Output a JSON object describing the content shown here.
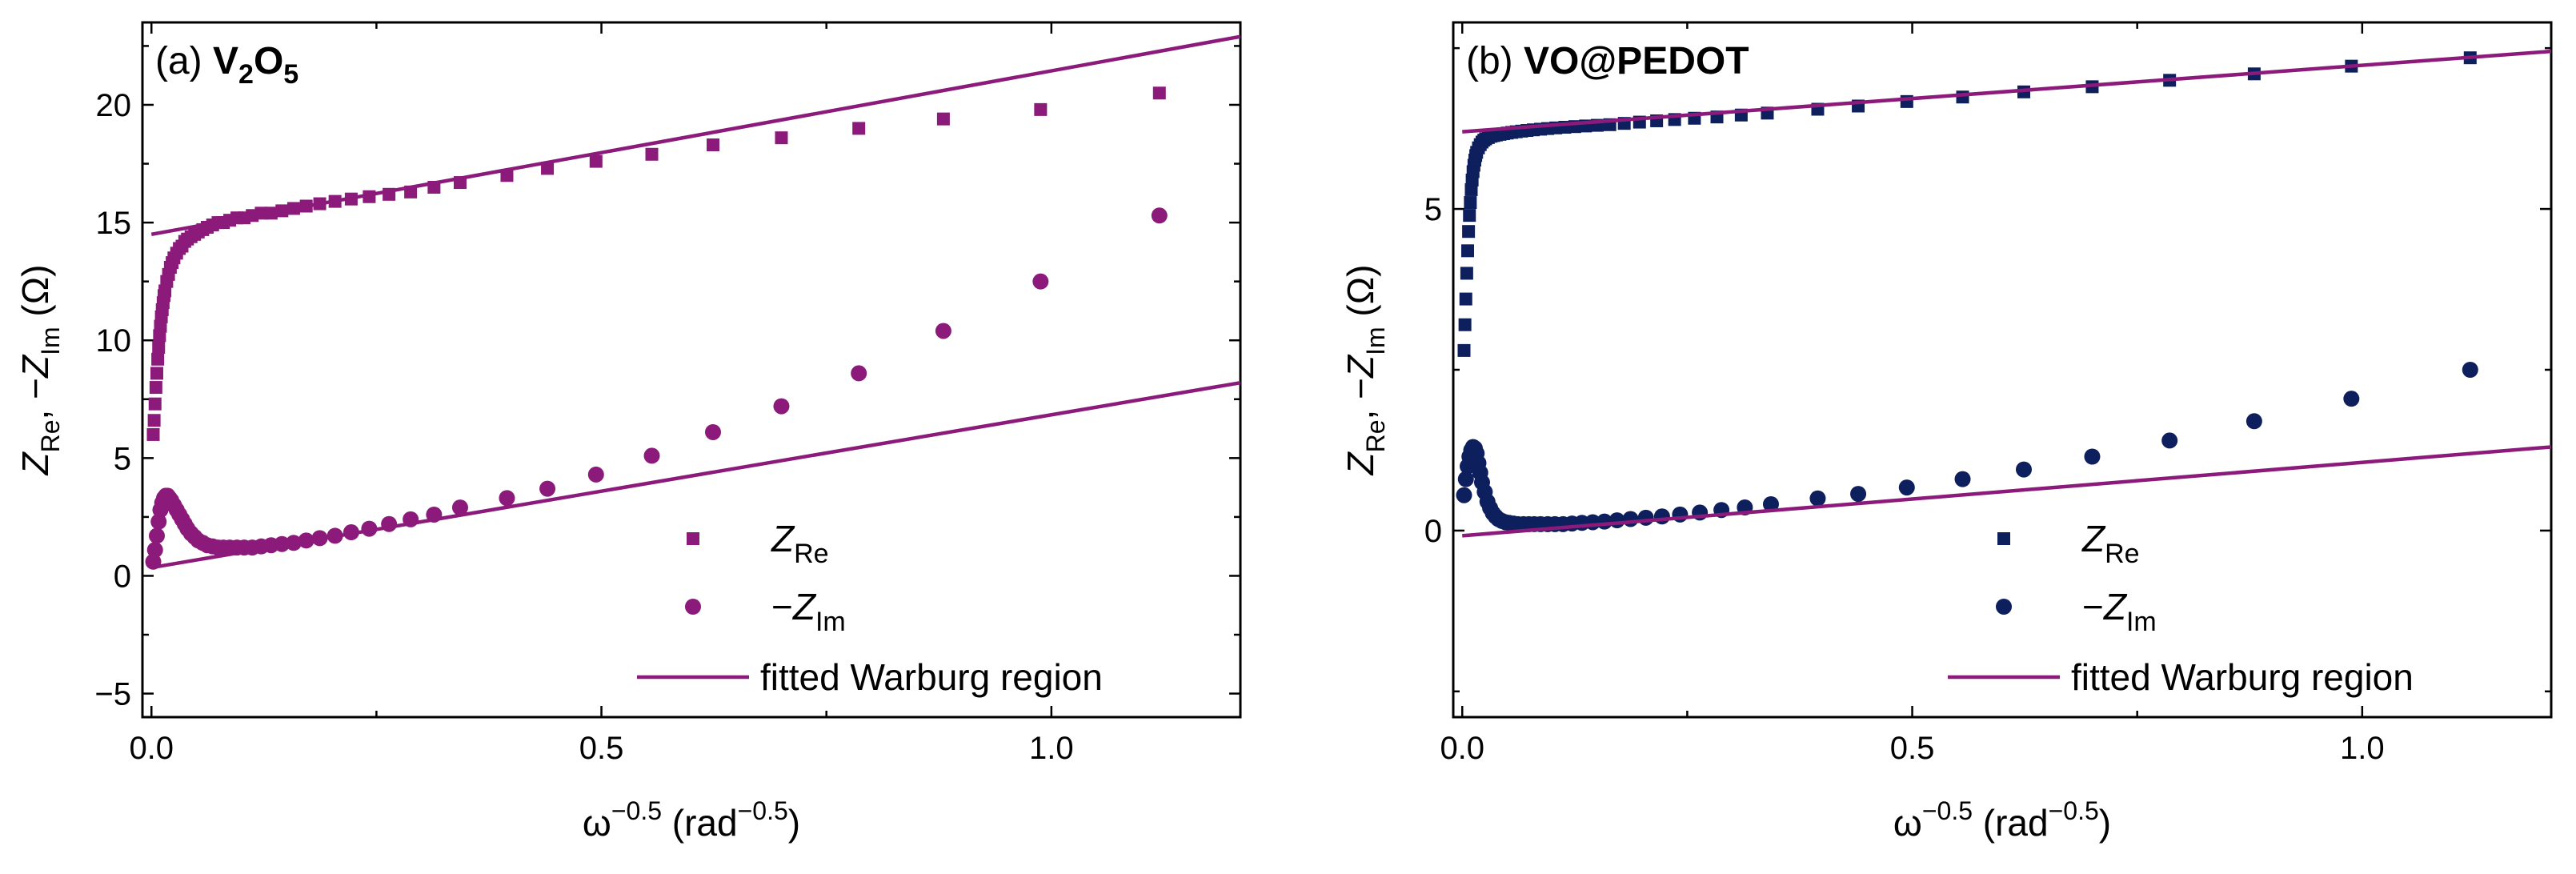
{
  "chart_data": [
    {
      "type": "scatter",
      "panel_label": "(a)",
      "title": "V2O5",
      "title_main": "V",
      "title_sub1": "2",
      "title_mid": "O",
      "title_sub2": "5",
      "xlabel": "ω−0.5 (rad−0.5)",
      "xlabel_base": "ω",
      "xlabel_exp": "−0.5",
      "xlabel_unit": " (rad",
      "xlabel_unit_exp": "−0.5",
      "xlabel_close": ")",
      "ylabel": "ZRe, −ZIm (Ω)",
      "ylabel_z1": "Z",
      "ylabel_sub1": "Re",
      "ylabel_sep": ", −",
      "ylabel_z2": "Z",
      "ylabel_sub2": "Im",
      "ylabel_unit": " (Ω)",
      "xlim": [
        -0.01,
        1.21
      ],
      "ylim": [
        -6,
        23.5
      ],
      "xticks": [
        0.0,
        0.5,
        1.0
      ],
      "xtick_labels": [
        "0.0",
        "0.5",
        "1.0"
      ],
      "yticks": [
        -5,
        0,
        5,
        10,
        15,
        20
      ],
      "ytick_labels": [
        "−5",
        "0",
        "5",
        "10",
        "15",
        "20"
      ],
      "marker_color": "#8b1a7a",
      "line_color": "#8b1a7a",
      "legend": {
        "position": "bottom-right",
        "entries": [
          {
            "marker": "square",
            "label_z": "Z",
            "label_sub": "Re",
            "label_prefix": ""
          },
          {
            "marker": "circle",
            "label_z": "Z",
            "label_sub": "Im",
            "label_prefix": "−"
          },
          {
            "marker": "line",
            "label": "fitted Warburg region"
          }
        ]
      },
      "series": [
        {
          "name": "ZRe",
          "marker": "square",
          "x": [
            0.002,
            0.003,
            0.004,
            0.005,
            0.006,
            0.007,
            0.008,
            0.009,
            0.01,
            0.011,
            0.012,
            0.013,
            0.014,
            0.015,
            0.017,
            0.019,
            0.021,
            0.023,
            0.025,
            0.028,
            0.031,
            0.034,
            0.037,
            0.04,
            0.044,
            0.048,
            0.052,
            0.057,
            0.062,
            0.068,
            0.074,
            0.08,
            0.087,
            0.095,
            0.103,
            0.112,
            0.122,
            0.133,
            0.145,
            0.158,
            0.172,
            0.187,
            0.204,
            0.222,
            0.242,
            0.264,
            0.288,
            0.314,
            0.343,
            0.395,
            0.44,
            0.494,
            0.556,
            0.624,
            0.7,
            0.786,
            0.88,
            0.988,
            1.12
          ],
          "y": [
            6.0,
            6.6,
            7.3,
            8.0,
            8.6,
            9.2,
            9.7,
            10.2,
            10.6,
            11.0,
            11.3,
            11.6,
            11.9,
            12.1,
            12.5,
            12.8,
            13.1,
            13.3,
            13.5,
            13.7,
            13.9,
            14.0,
            14.2,
            14.3,
            14.4,
            14.5,
            14.6,
            14.7,
            14.8,
            14.9,
            15.0,
            15.0,
            15.1,
            15.2,
            15.2,
            15.3,
            15.4,
            15.4,
            15.5,
            15.6,
            15.7,
            15.8,
            15.9,
            16.0,
            16.1,
            16.2,
            16.3,
            16.5,
            16.7,
            17.0,
            17.3,
            17.6,
            17.9,
            18.3,
            18.6,
            19.0,
            19.4,
            19.8,
            20.5
          ]
        },
        {
          "name": "−ZIm",
          "marker": "circle",
          "x": [
            0.002,
            0.004,
            0.006,
            0.008,
            0.01,
            0.012,
            0.014,
            0.016,
            0.018,
            0.02,
            0.022,
            0.025,
            0.028,
            0.031,
            0.034,
            0.037,
            0.04,
            0.044,
            0.048,
            0.052,
            0.057,
            0.062,
            0.068,
            0.074,
            0.08,
            0.087,
            0.095,
            0.103,
            0.112,
            0.122,
            0.133,
            0.145,
            0.158,
            0.172,
            0.187,
            0.204,
            0.222,
            0.242,
            0.264,
            0.288,
            0.314,
            0.343,
            0.395,
            0.44,
            0.494,
            0.556,
            0.624,
            0.7,
            0.786,
            0.88,
            0.988,
            1.12
          ],
          "y": [
            0.6,
            1.1,
            1.7,
            2.3,
            2.8,
            3.1,
            3.3,
            3.4,
            3.4,
            3.3,
            3.2,
            3.0,
            2.8,
            2.6,
            2.4,
            2.2,
            2.0,
            1.8,
            1.65,
            1.5,
            1.4,
            1.3,
            1.25,
            1.2,
            1.2,
            1.2,
            1.2,
            1.2,
            1.2,
            1.25,
            1.3,
            1.35,
            1.4,
            1.5,
            1.6,
            1.7,
            1.85,
            2.0,
            2.2,
            2.4,
            2.6,
            2.9,
            3.3,
            3.7,
            4.3,
            5.1,
            6.1,
            7.2,
            8.6,
            10.4,
            12.5,
            15.3
          ]
        },
        {
          "name": "fitted Warburg region (ZRe)",
          "marker": "line",
          "x": [
            0.0,
            1.21
          ],
          "y": [
            14.5,
            22.9
          ]
        },
        {
          "name": "fitted Warburg region (−ZIm)",
          "marker": "line",
          "x": [
            0.0,
            1.21
          ],
          "y": [
            0.35,
            8.2
          ]
        }
      ]
    },
    {
      "type": "scatter",
      "panel_label": "(b)",
      "title": "VO@PEDOT",
      "xlabel": "ω−0.5 (rad−0.5)",
      "xlabel_base": "ω",
      "xlabel_exp": "−0.5",
      "xlabel_unit": " (rad",
      "xlabel_unit_exp": "−0.5",
      "xlabel_close": ")",
      "ylabel": "ZRe, −ZIm (Ω)",
      "ylabel_z1": "Z",
      "ylabel_sub1": "Re",
      "ylabel_sep": ", −",
      "ylabel_z2": "Z",
      "ylabel_sub2": "Im",
      "ylabel_unit": " (Ω)",
      "xlim": [
        -0.01,
        1.21
      ],
      "ylim": [
        -2.9,
        7.9
      ],
      "xticks": [
        0.0,
        0.5,
        1.0
      ],
      "xtick_labels": [
        "0.0",
        "0.5",
        "1.0"
      ],
      "yticks": [
        0,
        5
      ],
      "ytick_labels": [
        "0",
        "5"
      ],
      "marker_color": "#0d1f5c",
      "line_color": "#8b1a7a",
      "legend": {
        "position": "bottom-right",
        "entries": [
          {
            "marker": "square",
            "label_z": "Z",
            "label_sub": "Re",
            "label_prefix": ""
          },
          {
            "marker": "circle",
            "label_z": "Z",
            "label_sub": "Im",
            "label_prefix": "−"
          },
          {
            "marker": "line",
            "label": "fitted Warburg region"
          }
        ]
      },
      "series": [
        {
          "name": "ZRe",
          "marker": "square",
          "x": [
            0.002,
            0.003,
            0.004,
            0.005,
            0.006,
            0.007,
            0.008,
            0.009,
            0.01,
            0.011,
            0.012,
            0.013,
            0.014,
            0.015,
            0.016,
            0.018,
            0.02,
            0.022,
            0.024,
            0.026,
            0.029,
            0.032,
            0.035,
            0.038,
            0.042,
            0.046,
            0.05,
            0.055,
            0.06,
            0.066,
            0.072,
            0.079,
            0.087,
            0.095,
            0.104,
            0.114,
            0.125,
            0.137,
            0.15,
            0.164,
            0.18,
            0.197,
            0.216,
            0.236,
            0.258,
            0.283,
            0.31,
            0.339,
            0.395,
            0.44,
            0.494,
            0.556,
            0.624,
            0.7,
            0.786,
            0.88,
            0.988,
            1.12
          ],
          "y": [
            2.8,
            3.2,
            3.6,
            4.0,
            4.35,
            4.65,
            4.9,
            5.1,
            5.3,
            5.45,
            5.58,
            5.68,
            5.76,
            5.83,
            5.88,
            5.95,
            6.0,
            6.04,
            6.07,
            6.09,
            6.11,
            6.13,
            6.14,
            6.15,
            6.16,
            6.17,
            6.18,
            6.19,
            6.2,
            6.21,
            6.22,
            6.23,
            6.24,
            6.25,
            6.26,
            6.27,
            6.28,
            6.29,
            6.3,
            6.31,
            6.33,
            6.35,
            6.37,
            6.39,
            6.41,
            6.43,
            6.46,
            6.49,
            6.55,
            6.6,
            6.67,
            6.74,
            6.82,
            6.9,
            7.0,
            7.1,
            7.22,
            7.35
          ]
        },
        {
          "name": "−ZIm",
          "marker": "circle",
          "x": [
            0.002,
            0.004,
            0.006,
            0.008,
            0.01,
            0.012,
            0.014,
            0.016,
            0.018,
            0.02,
            0.022,
            0.025,
            0.028,
            0.031,
            0.034,
            0.037,
            0.04,
            0.044,
            0.048,
            0.052,
            0.057,
            0.062,
            0.068,
            0.074,
            0.08,
            0.087,
            0.095,
            0.103,
            0.112,
            0.122,
            0.133,
            0.145,
            0.158,
            0.172,
            0.187,
            0.204,
            0.222,
            0.242,
            0.264,
            0.288,
            0.314,
            0.343,
            0.395,
            0.44,
            0.494,
            0.556,
            0.624,
            0.7,
            0.786,
            0.88,
            0.988,
            1.12
          ],
          "y": [
            0.55,
            0.8,
            1.0,
            1.15,
            1.25,
            1.3,
            1.28,
            1.2,
            1.05,
            0.9,
            0.75,
            0.6,
            0.45,
            0.35,
            0.27,
            0.22,
            0.18,
            0.15,
            0.13,
            0.12,
            0.11,
            0.1,
            0.1,
            0.1,
            0.1,
            0.1,
            0.1,
            0.1,
            0.1,
            0.11,
            0.12,
            0.13,
            0.14,
            0.16,
            0.18,
            0.2,
            0.22,
            0.25,
            0.28,
            0.32,
            0.36,
            0.41,
            0.5,
            0.57,
            0.67,
            0.8,
            0.95,
            1.15,
            1.4,
            1.7,
            2.05,
            2.5
          ]
        },
        {
          "name": "fitted Warburg region (ZRe)",
          "marker": "line",
          "x": [
            0.0,
            1.21
          ],
          "y": [
            6.2,
            7.45
          ]
        },
        {
          "name": "fitted Warburg region (−ZIm)",
          "marker": "line",
          "x": [
            0.0,
            1.21
          ],
          "y": [
            -0.08,
            1.3
          ]
        }
      ]
    }
  ]
}
